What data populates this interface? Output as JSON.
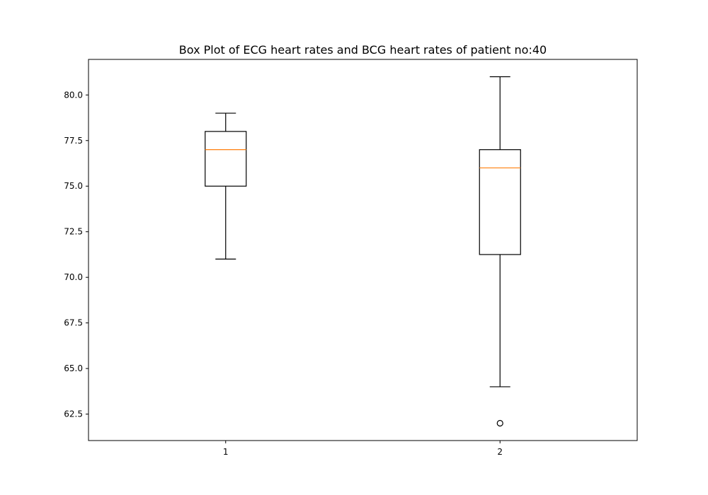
{
  "chart_data": {
    "type": "box",
    "title": "Box Plot of ECG heart rates and BCG heart rates of patient no:40",
    "xlabel": "",
    "ylabel": "",
    "categories": [
      "1",
      "2"
    ],
    "ylim": [
      61.05,
      81.95
    ],
    "yticks": [
      62.5,
      65.0,
      67.5,
      70.0,
      72.5,
      75.0,
      77.5,
      80.0
    ],
    "ytick_labels": [
      "62.5",
      "65.0",
      "67.5",
      "70.0",
      "72.5",
      "75.0",
      "77.5",
      "80.0"
    ],
    "grid": false,
    "boxes": [
      {
        "whisker_low": 71,
        "q1": 75,
        "median": 77,
        "q3": 78,
        "whisker_high": 79,
        "outliers": []
      },
      {
        "whisker_low": 64,
        "q1": 71.25,
        "median": 76,
        "q3": 77,
        "whisker_high": 81,
        "outliers": [
          62
        ]
      }
    ],
    "colors": {
      "box": "#000000",
      "median": "#ff7f0e",
      "axes": "#000000"
    }
  }
}
